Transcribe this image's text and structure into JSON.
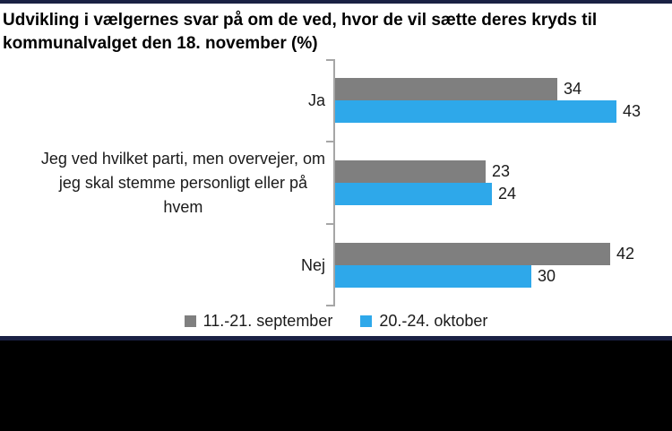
{
  "page": {
    "accent_color": "#1A2144",
    "background_color": "#FFFFFF",
    "letterbox_color": "#000000"
  },
  "title": "Udvikling i vælgernes svar på om de ved, hvor de vil sætte deres kryds til kommunalvalget den 18. november (%)",
  "chart_data": {
    "type": "bar",
    "orientation": "horizontal",
    "title": "Udvikling i vælgernes svar på om de ved, hvor de vil sætte deres kryds til kommunalvalget den 18. november (%)",
    "categories": [
      "Ja",
      "Jeg ved hvilket parti, men overvejer, om\njeg skal stemme personligt eller på\nhvem",
      "Nej"
    ],
    "series": [
      {
        "name": "11.-21. september",
        "color": "#7F7F7F",
        "values": [
          34,
          23,
          42
        ]
      },
      {
        "name": "20.-24. oktober",
        "color": "#2EA8EA",
        "values": [
          43,
          24,
          30
        ]
      }
    ],
    "value_labels": true,
    "xlim": [
      0,
      50
    ],
    "axis_color": "#A6A6A6",
    "grid": false,
    "legend_position": "bottom"
  }
}
